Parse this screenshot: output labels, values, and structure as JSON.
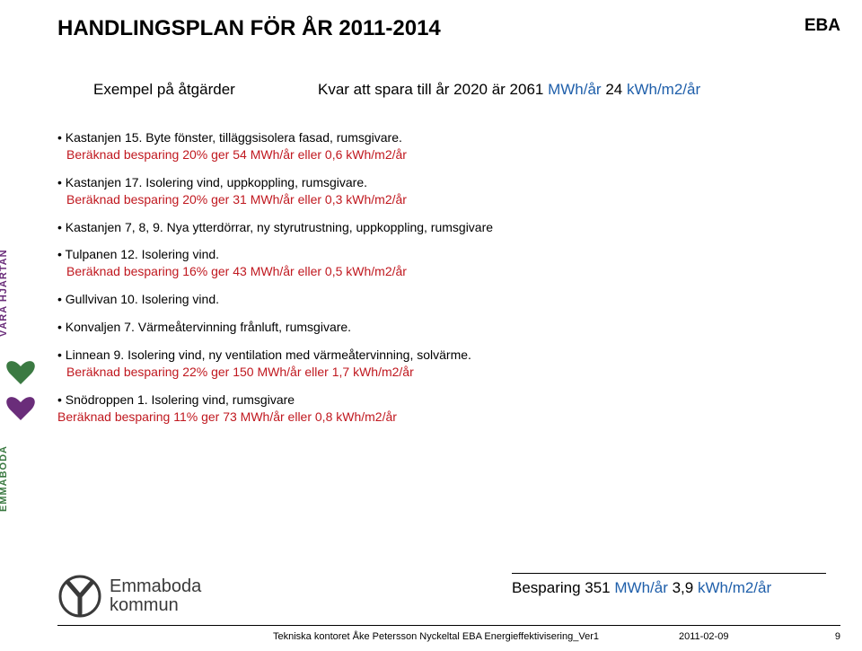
{
  "colors": {
    "blue": "#1f5faa",
    "red": "#c0181f",
    "purple": "#6a2d7a",
    "green": "#3b7a42",
    "text": "#000000",
    "logo_gray": "#3a3a3a"
  },
  "strip": {
    "upper": "VÅRA HJÄRTAN",
    "lower": "EMMABODA"
  },
  "header": {
    "title": "HANDLINGSPLAN FÖR ÅR 2011-2014",
    "eba": "EBA"
  },
  "subhead": {
    "left": "Exempel på åtgärder",
    "right_prefix": "Kvar att spara till år 2020 är 2061 ",
    "right_blue1": "MWh/år",
    "right_mid": "   24 ",
    "right_blue2": "kWh/m2/år"
  },
  "items": [
    {
      "line1": "Kastanjen 15. Byte fönster, tilläggsisolera fasad, rumsgivare.",
      "line2": "Beräknad besparing 20% ger 54 MWh/år eller 0,6 kWh/m2/år"
    },
    {
      "line1": "Kastanjen 17. Isolering vind, uppkoppling, rumsgivare.",
      "line2": "Beräknad besparing 20% ger 31 MWh/år eller 0,3 kWh/m2/år"
    },
    {
      "line1": "Kastanjen 7, 8, 9. Nya ytterdörrar, ny styrutrustning, uppkoppling, rumsgivare",
      "line2": ""
    },
    {
      "line1": "Tulpanen 12. Isolering vind.",
      "line2": "Beräknad besparing 16% ger 43 MWh/år eller 0,5 kWh/m2/år"
    },
    {
      "line1": "Gullvivan 10. Isolering vind.",
      "line2": ""
    },
    {
      "line1": "Konvaljen 7. Värmeåtervinning frånluft, rumsgivare.",
      "line2": ""
    },
    {
      "line1": "Linnean 9. Isolering vind, ny ventilation med värmeåtervinning, solvärme.",
      "line2": "Beräknad besparing 22% ger 150 MWh/år eller 1,7 kWh/m2/år"
    },
    {
      "line1": "Snödroppen 1. Isolering vind, rumsgivare",
      "line2_prefix": "",
      "line2": "Beräknad besparing 11% ger 73 MWh/år eller 0,8 kWh/m2/år",
      "indent_line2": false
    }
  ],
  "summary": {
    "label": "Besparing  351 ",
    "unit1": "MWh/år",
    "mid": "   3,9 ",
    "unit2": "kWh/m2/år"
  },
  "logo": {
    "line1": "Emmaboda",
    "line2": "kommun"
  },
  "footer": {
    "left": "Tekniska kontoret    Åke Petersson   Nyckeltal EBA Energieffektivisering_Ver1",
    "date": "2011-02-09",
    "page": "9"
  }
}
